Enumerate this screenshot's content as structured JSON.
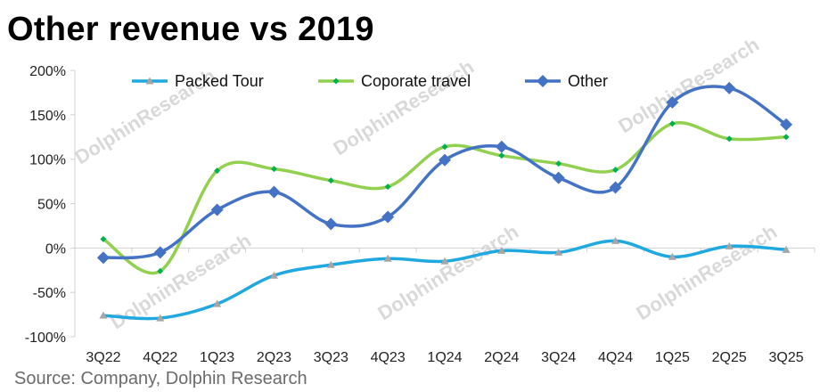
{
  "title": "Other revenue vs 2019",
  "source": "Source: Company, Dolphin Research",
  "watermark": "DolphinResearch",
  "chart_data": {
    "type": "line",
    "categories": [
      "3Q22",
      "4Q22",
      "1Q23",
      "2Q23",
      "3Q23",
      "4Q23",
      "1Q24",
      "2Q24",
      "3Q24",
      "4Q24",
      "1Q25",
      "2Q25",
      "3Q25"
    ],
    "ylim": [
      -100,
      200
    ],
    "yticks": [
      -100,
      -50,
      0,
      50,
      100,
      150,
      200
    ],
    "ytick_labels": [
      "-100%",
      "-50%",
      "0%",
      "50%",
      "100%",
      "150%",
      "200%"
    ],
    "grid": false,
    "legend_position": "top",
    "smooth": true,
    "series": [
      {
        "name": "Packed Tour",
        "color": "#20a8e0",
        "marker": "triangle",
        "marker_color": "#a6a6a6",
        "values": [
          -76,
          -79,
          -63,
          -31,
          -19,
          -12,
          -15,
          -3,
          -5,
          8,
          -10,
          2,
          -2
        ]
      },
      {
        "name": "Coporate travel",
        "color": "#92d050",
        "marker": "diamond-small",
        "marker_color": "#00b050",
        "values": [
          10,
          -26,
          87,
          89,
          76,
          69,
          114,
          104,
          95,
          88,
          140,
          123,
          125
        ]
      },
      {
        "name": "Other",
        "color": "#4472c4",
        "marker": "diamond",
        "marker_color": "#4472c4",
        "values": [
          -11,
          -5,
          43,
          63,
          27,
          35,
          99,
          114,
          79,
          68,
          164,
          180,
          139
        ]
      }
    ]
  }
}
